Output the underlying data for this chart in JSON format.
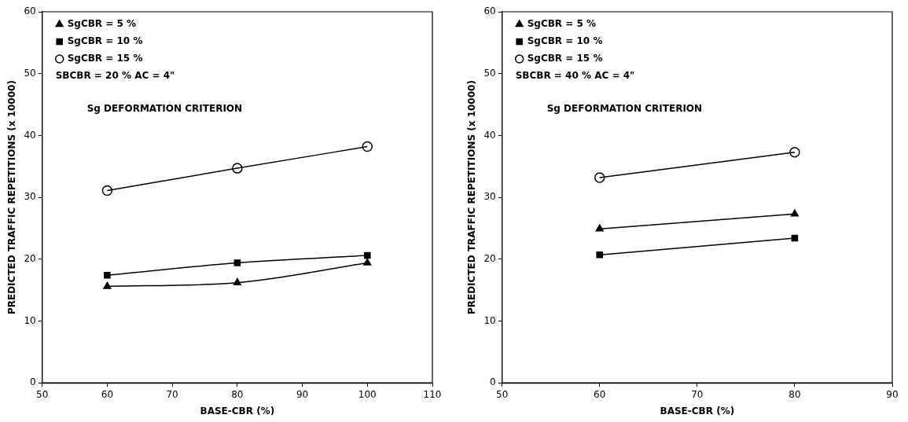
{
  "chart_data": [
    {
      "type": "line",
      "xlabel": "BASE-CBR (%)",
      "ylabel": "PREDICTED TRAFFIC REPETITIONS (x 10000)",
      "x": [
        60,
        80,
        100
      ],
      "xlim": [
        50,
        110
      ],
      "xticks": [
        50,
        60,
        70,
        80,
        90,
        100,
        110
      ],
      "ylim": [
        0,
        60
      ],
      "yticks": [
        0,
        10,
        20,
        30,
        40,
        50,
        60
      ],
      "legend": "top left",
      "series": [
        {
          "name": "SgCBR = 5 %",
          "color": "#000000",
          "marker": "triangle",
          "values": [
            15.6,
            16.2,
            19.4
          ]
        },
        {
          "name": "SgCBR = 10 %",
          "color": "#000000",
          "marker": "square",
          "values": [
            17.4,
            19.4,
            20.6
          ]
        },
        {
          "name": "SgCBR = 15 %",
          "color": "#000000",
          "marker": "circle",
          "values": [
            31.1,
            34.7,
            38.2
          ]
        }
      ],
      "annotations": [
        "SBCBR = 20 % AC = 4\"",
        "Sg DEFORMATION CRITERION"
      ]
    },
    {
      "type": "line",
      "xlabel": "BASE-CBR (%)",
      "ylabel": "PREDICTED TRAFFIC REPETITIONS (x 10000)",
      "x": [
        60,
        80
      ],
      "xlim": [
        50,
        90
      ],
      "xticks": [
        50,
        60,
        70,
        80,
        90
      ],
      "ylim": [
        0,
        60
      ],
      "yticks": [
        0,
        10,
        20,
        30,
        40,
        50,
        60
      ],
      "legend": "top left",
      "series": [
        {
          "name": "SgCBR = 5 %",
          "color": "#000000",
          "marker": "triangle",
          "values": [
            24.9,
            27.3
          ]
        },
        {
          "name": "SgCBR = 10 %",
          "color": "#000000",
          "marker": "square",
          "values": [
            20.7,
            23.4
          ]
        },
        {
          "name": "SgCBR = 15 %",
          "color": "#000000",
          "marker": "circle",
          "values": [
            33.2,
            37.3
          ]
        }
      ],
      "annotations": [
        "SBCBR = 40 % AC = 4\"",
        "Sg DEFORMATION CRITERION"
      ]
    }
  ]
}
